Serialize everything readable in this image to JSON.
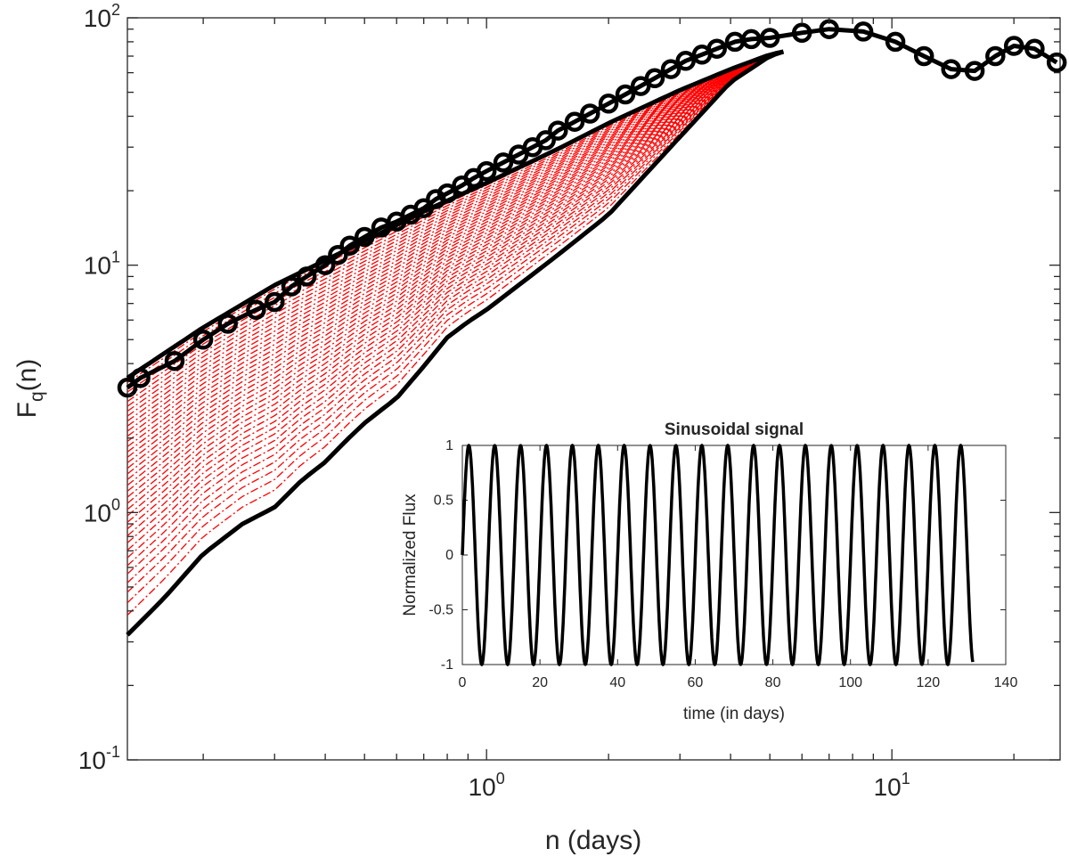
{
  "chart_data": [
    {
      "type": "line",
      "role": "main",
      "xlabel": "n (days)",
      "ylabel_main": "F",
      "ylabel_sub": "q",
      "ylabel_tail": "(n)",
      "xscale": "log",
      "yscale": "log",
      "xlim": [
        0.13,
        26
      ],
      "ylim": [
        0.1,
        100
      ],
      "x_ticks": [
        {
          "value": 1,
          "base": "10",
          "exp": "0"
        },
        {
          "value": 10,
          "base": "10",
          "exp": "1"
        }
      ],
      "y_ticks": [
        {
          "value": 0.1,
          "base": "10",
          "exp": "-1"
        },
        {
          "value": 1,
          "base": "10",
          "exp": "0"
        },
        {
          "value": 10,
          "base": "10",
          "exp": "1"
        },
        {
          "value": 100,
          "base": "10",
          "exp": "2"
        }
      ],
      "series": [
        {
          "name": "upper envelope",
          "color": "#000000",
          "x": [
            0.13,
            0.2,
            0.3,
            0.5,
            0.7,
            1.0,
            1.5,
            2.0,
            3.0,
            4.0,
            5.0,
            5.4
          ],
          "y": [
            3.5,
            5.6,
            8.3,
            12.5,
            16.5,
            21.5,
            29.5,
            37.5,
            51.0,
            62.0,
            71.0,
            73.0
          ]
        },
        {
          "name": "lower envelope",
          "color": "#000000",
          "x": [
            0.13,
            0.16,
            0.2,
            0.25,
            0.3,
            0.35,
            0.4,
            0.45,
            0.5,
            0.55,
            0.6,
            0.7,
            0.8,
            0.9,
            1.0,
            1.5,
            2.0,
            3.0,
            4.0,
            5.0,
            5.4
          ],
          "y": [
            0.32,
            0.45,
            0.68,
            0.9,
            1.05,
            1.35,
            1.6,
            1.95,
            2.3,
            2.6,
            2.9,
            3.9,
            5.1,
            5.9,
            6.6,
            11.0,
            16.0,
            33.0,
            55.0,
            70.0,
            73.0
          ]
        },
        {
          "name": "F_q(n) markers",
          "color": "#000000",
          "marker": "circle",
          "x": [
            0.13,
            0.14,
            0.17,
            0.2,
            0.23,
            0.27,
            0.3,
            0.33,
            0.36,
            0.4,
            0.43,
            0.46,
            0.5,
            0.55,
            0.6,
            0.65,
            0.7,
            0.75,
            0.8,
            0.87,
            0.93,
            1.0,
            1.1,
            1.2,
            1.3,
            1.4,
            1.5,
            1.65,
            1.8,
            2.0,
            2.2,
            2.4,
            2.6,
            2.85,
            3.1,
            3.4,
            3.7,
            4.1,
            4.5,
            5.0,
            6.0,
            7.0,
            8.5,
            10.2,
            12.0,
            14.0,
            16.0,
            18.0,
            20.0,
            22.5,
            25.5
          ],
          "y": [
            3.2,
            3.5,
            4.1,
            5.0,
            5.8,
            6.6,
            7.1,
            8.2,
            9.0,
            10.0,
            11.0,
            12.0,
            13.0,
            14.2,
            15.0,
            16.0,
            17.0,
            18.5,
            19.5,
            21.0,
            22.5,
            24.0,
            26.0,
            28.0,
            30.0,
            32.0,
            35.0,
            38.0,
            41.0,
            45.0,
            49.0,
            53.0,
            57.0,
            62.0,
            67.0,
            71.0,
            75.0,
            80.0,
            82.0,
            83.0,
            87.0,
            90.0,
            88.0,
            80.0,
            70.0,
            62.0,
            61.0,
            70.0,
            77.0,
            75.0,
            66.0
          ]
        },
        {
          "name": "q-order family (dash-dot)",
          "color": "#ff0000",
          "style": "dashdot",
          "count": 40
        }
      ]
    },
    {
      "type": "line",
      "role": "inset",
      "title": "Sinusoidal signal",
      "xlabel": "time (in days)",
      "ylabel": "Normalized Flux",
      "xlim": [
        0,
        140
      ],
      "ylim": [
        -1,
        1
      ],
      "x_ticks": [
        "0",
        "20",
        "40",
        "60",
        "80",
        "100",
        "120",
        "140"
      ],
      "y_ticks": [
        "-1",
        "-0.5",
        "0",
        "0.5",
        "1"
      ],
      "series": [
        {
          "name": "flux",
          "color": "#000000",
          "function": "sin",
          "period_days": 6.67,
          "t_start": 0,
          "t_end": 131.5
        }
      ]
    }
  ]
}
